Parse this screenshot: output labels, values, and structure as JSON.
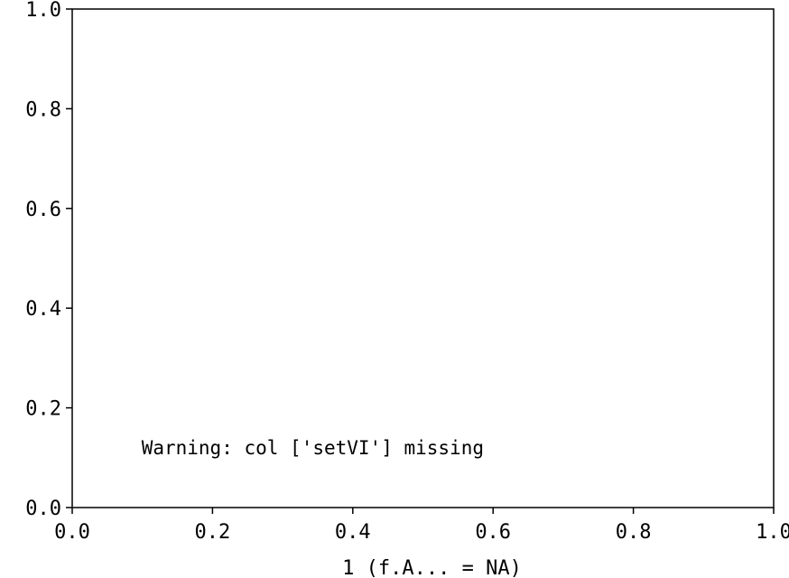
{
  "chart_data": {
    "type": "scatter",
    "series": [],
    "title": "",
    "xlabel": "1 (f.A... = NA)",
    "ylabel": "",
    "xlim": [
      0.0,
      1.0
    ],
    "ylim": [
      0.0,
      1.0
    ],
    "x_ticks": [
      "0.0",
      "0.2",
      "0.4",
      "0.6",
      "0.8",
      "1.0"
    ],
    "y_ticks": [
      "0.0",
      "0.2",
      "0.4",
      "0.6",
      "0.8",
      "1.0"
    ],
    "grid": false,
    "annotations": [
      {
        "text": "Warning: col ['setVI'] missing",
        "x": 0.1,
        "y": 0.12
      }
    ]
  }
}
